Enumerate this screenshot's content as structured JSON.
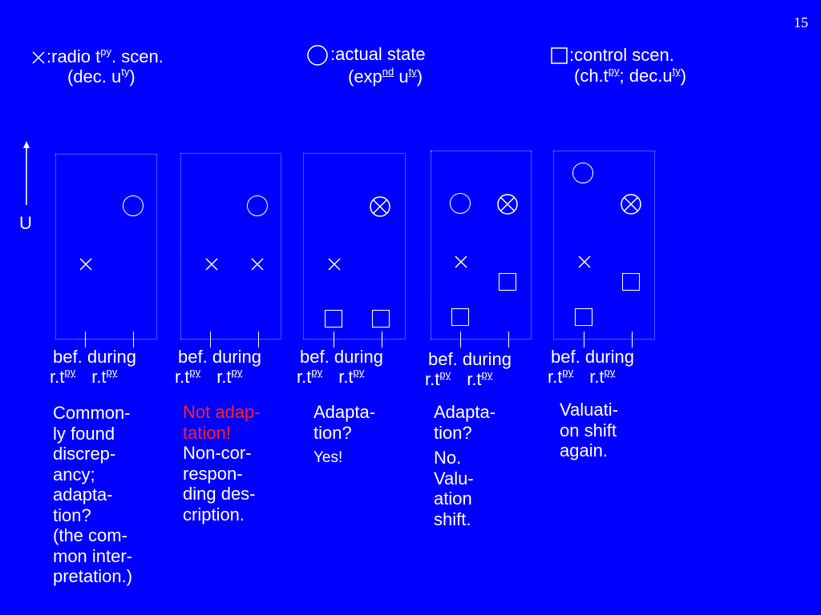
{
  "page_number": "15",
  "legend": {
    "cross": {
      "line1_a": ":radio t",
      "line1_sup": "py",
      "line1_b": ". scen.",
      "line2_a": "(dec. u",
      "line2_sup": "ty",
      "line2_b": ")"
    },
    "circle": {
      "line1": ":actual state",
      "line2_a": "(exp",
      "line2_sup1": "nd",
      "line2_b": " u",
      "line2_sup2": "ty",
      "line2_c": ")"
    },
    "square": {
      "line1": ":control scen.",
      "line2_a": "(ch.t",
      "line2_sup1": "py",
      "line2_b": "; dec.u",
      "line2_sup2": "ty",
      "line2_c": ")"
    }
  },
  "axis_label": "U",
  "columns": [
    {
      "bef": "bef.",
      "during": "during",
      "rt": "r.t",
      "sup": "py",
      "note": [
        "Common-",
        "ly found",
        "discrep-",
        "ancy;",
        "adapta-",
        "tion?",
        "(the com-",
        "mon inter-",
        "pretation.)"
      ]
    },
    {
      "bef": "bef.",
      "during": "during",
      "rt": "r.t",
      "sup": "py",
      "note_red": [
        "Not adap-",
        "tation!"
      ],
      "note": [
        "Non-cor-",
        "respon-",
        "ding des-",
        "cription."
      ]
    },
    {
      "bef": "bef.",
      "during": "during",
      "rt": "r.t",
      "sup": "py",
      "note": [
        "Adapta-",
        "tion?"
      ],
      "note_small": "Yes!"
    },
    {
      "bef": "bef.",
      "during": "during",
      "rt": "r.t",
      "sup": "py",
      "note": [
        "Adapta-",
        "tion?"
      ],
      "note2": [
        "No.",
        "Valu-",
        "ation",
        "shift."
      ]
    },
    {
      "bef": "bef.",
      "during": "during",
      "rt": "r.t",
      "sup": "py",
      "note": [
        "Valuati-",
        "on shift",
        "again."
      ]
    }
  ]
}
